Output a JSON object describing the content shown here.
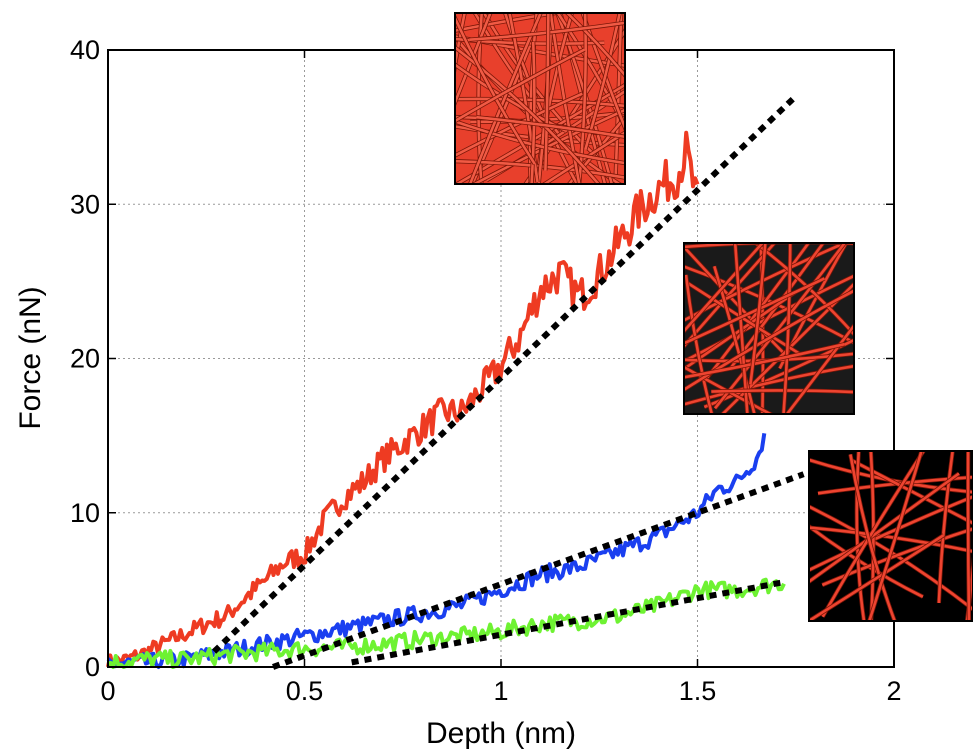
{
  "chart_data": {
    "type": "line",
    "title": "",
    "xlabel": "Depth (nm)",
    "ylabel": "Force (nN)",
    "xlim": [
      0,
      2
    ],
    "ylim": [
      0,
      40
    ],
    "xticks": [
      0,
      0.5,
      1,
      1.5,
      2
    ],
    "xtick_labels": [
      "0",
      "0.5",
      "1",
      "1.5",
      "2"
    ],
    "yticks": [
      0,
      10,
      20,
      30,
      40
    ],
    "ytick_labels": [
      "0",
      "10",
      "20",
      "30",
      "40"
    ],
    "grid": true,
    "legend": "none",
    "series": [
      {
        "color": "#ee3b22",
        "x": [
          0,
          0.05,
          0.1,
          0.15,
          0.2,
          0.25,
          0.3,
          0.35,
          0.4,
          0.45,
          0.5,
          0.55,
          0.6,
          0.65,
          0.7,
          0.75,
          0.8,
          0.85,
          0.9,
          0.95,
          1.0,
          1.05,
          1.1,
          1.15,
          1.2,
          1.25,
          1.3,
          1.35,
          1.4,
          1.45,
          1.47,
          1.5
        ],
        "y": [
          0.3,
          0.5,
          1.0,
          1.6,
          2.2,
          2.8,
          3.3,
          4.5,
          5.6,
          6.8,
          7.3,
          9.5,
          11.0,
          12.0,
          13.5,
          14.5,
          15.5,
          16.5,
          16.5,
          18.0,
          19.5,
          21.5,
          24.5,
          25.5,
          24.0,
          25.5,
          27.5,
          29.5,
          31.0,
          32.0,
          33.5,
          30.0
        ]
      },
      {
        "color": "#1a3ff0",
        "x": [
          0,
          0.1,
          0.2,
          0.3,
          0.4,
          0.5,
          0.6,
          0.7,
          0.8,
          0.9,
          1.0,
          1.1,
          1.2,
          1.3,
          1.4,
          1.5,
          1.55,
          1.6,
          1.65,
          1.67
        ],
        "y": [
          0.2,
          0.3,
          0.5,
          1.0,
          1.5,
          2.0,
          2.5,
          3.0,
          3.5,
          4.0,
          5.0,
          6.0,
          6.5,
          7.5,
          8.5,
          10.0,
          11.5,
          12.0,
          13.5,
          15.0
        ]
      },
      {
        "color": "#6ef232",
        "x": [
          0,
          0.1,
          0.2,
          0.3,
          0.4,
          0.5,
          0.6,
          0.7,
          0.8,
          0.9,
          1.0,
          1.1,
          1.2,
          1.3,
          1.4,
          1.5,
          1.6,
          1.72
        ],
        "y": [
          0.3,
          0.5,
          0.5,
          0.8,
          1.0,
          1.2,
          1.3,
          1.5,
          1.8,
          2.0,
          2.3,
          2.8,
          3.0,
          3.3,
          4.0,
          5.0,
          5.0,
          5.5
        ]
      }
    ],
    "fits": [
      {
        "color": "#000000",
        "x": [
          0.27,
          1.75
        ],
        "y": [
          1.0,
          37.0
        ]
      },
      {
        "color": "#000000",
        "x": [
          0.42,
          1.77
        ],
        "y": [
          0.0,
          12.5
        ]
      },
      {
        "color": "#000000",
        "x": [
          0.62,
          1.72
        ],
        "y": [
          0.3,
          5.5
        ]
      }
    ],
    "insets": [
      {
        "name": "dense-network-inset",
        "background": "#e8402c",
        "fiber_color": "#f05a44",
        "density": "dense"
      },
      {
        "name": "medium-network-inset",
        "background": "#1a1a1a",
        "fiber_color": "#ee4430",
        "density": "medium"
      },
      {
        "name": "sparse-network-inset",
        "background": "#000000",
        "fiber_color": "#ee4430",
        "density": "sparse"
      }
    ]
  }
}
